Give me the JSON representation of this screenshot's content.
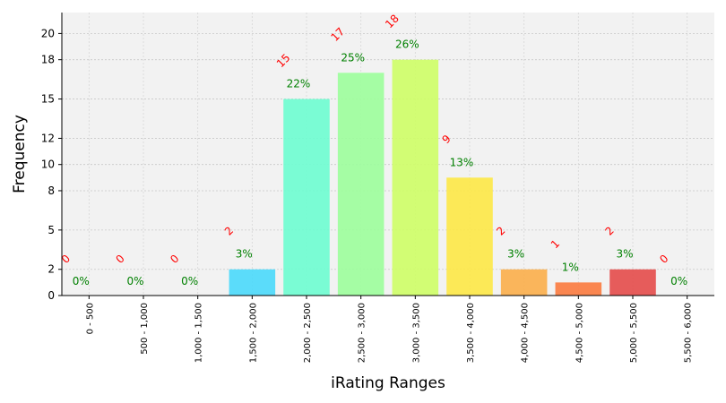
{
  "chart_data": {
    "type": "bar",
    "xlabel": "iRating Ranges",
    "ylabel": "Frequency",
    "categories": [
      "0 - 500",
      "500 - 1,000",
      "1,000 - 1,500",
      "1,500 - 2,000",
      "2,000 - 2,500",
      "2,500 - 3,000",
      "3,000 - 3,500",
      "3,500 - 4,000",
      "4,000 - 4,500",
      "4,500 - 5,000",
      "5,000 - 5,500",
      "5,500 - 6,000"
    ],
    "values": [
      0,
      0,
      0,
      2,
      15,
      17,
      18,
      9,
      2,
      1,
      2,
      0
    ],
    "count_labels": [
      "0",
      "0",
      "0",
      "2",
      "15",
      "17",
      "18",
      "9",
      "2",
      "1",
      "2",
      "0"
    ],
    "percent_labels": [
      "0%",
      "0%",
      "0%",
      "3%",
      "22%",
      "25%",
      "26%",
      "13%",
      "3%",
      "1%",
      "3%",
      "0%"
    ],
    "colors": [
      "#00d4ff",
      "#00d4ff",
      "#00d4ff",
      "#4ad9fb",
      "#6dfdd0",
      "#9cfe9b",
      "#cefe66",
      "#fde846",
      "#fbae4a",
      "#fb7a3e",
      "#e44b4a",
      "#e44b4a"
    ],
    "ylim": [
      0,
      21.6
    ],
    "yticks": [
      0,
      2,
      5,
      8,
      10,
      12,
      15,
      18,
      20
    ],
    "ytick_labels": [
      "0",
      "2",
      "5",
      "8",
      "10",
      "12",
      "15",
      "18",
      "20"
    ],
    "grid": true,
    "background": "#f2f2f2"
  }
}
